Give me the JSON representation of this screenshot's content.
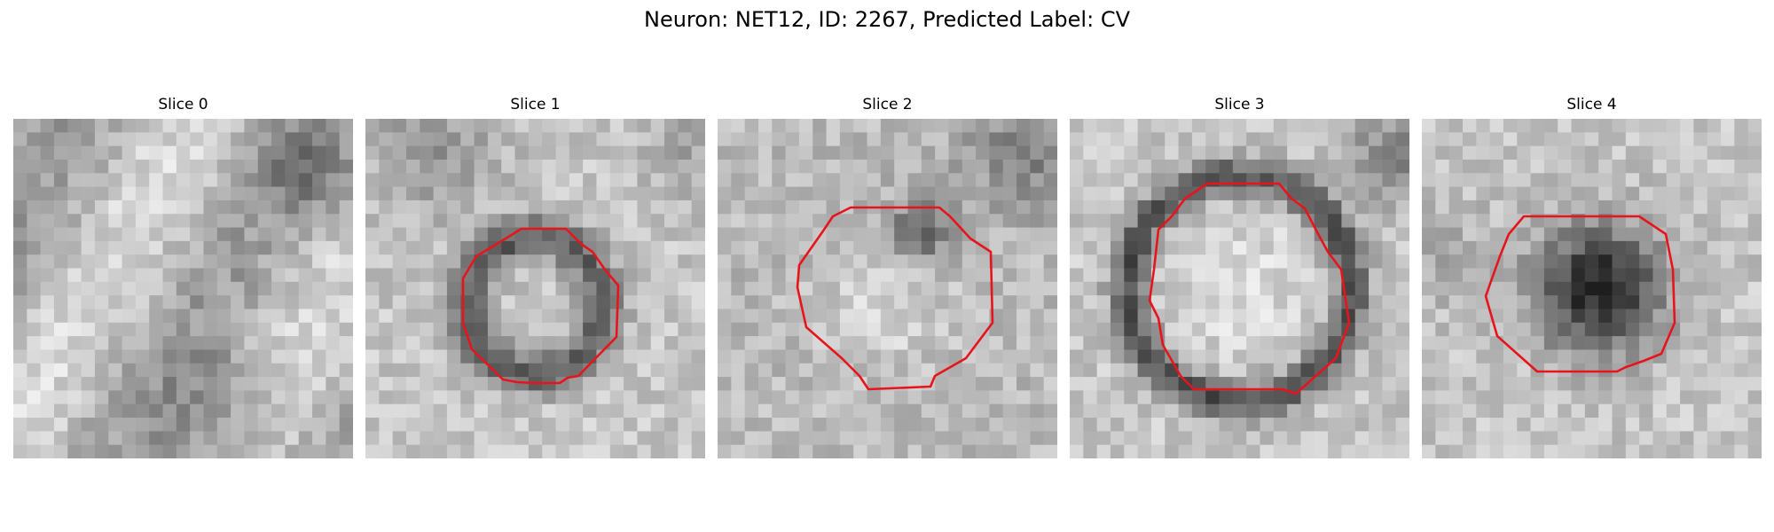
{
  "figure": {
    "title": "Neuron: NET12, ID: 2267, Predicted Label: CV"
  },
  "colors": {
    "contour": "#e8141b",
    "background": "#ffffff"
  },
  "panels": [
    {
      "title": "Slice 0",
      "contour": false
    },
    {
      "title": "Slice 1",
      "contour": true
    },
    {
      "title": "Slice 2",
      "contour": true
    },
    {
      "title": "Slice 3",
      "contour": true
    },
    {
      "title": "Slice 4",
      "contour": true
    }
  ]
}
